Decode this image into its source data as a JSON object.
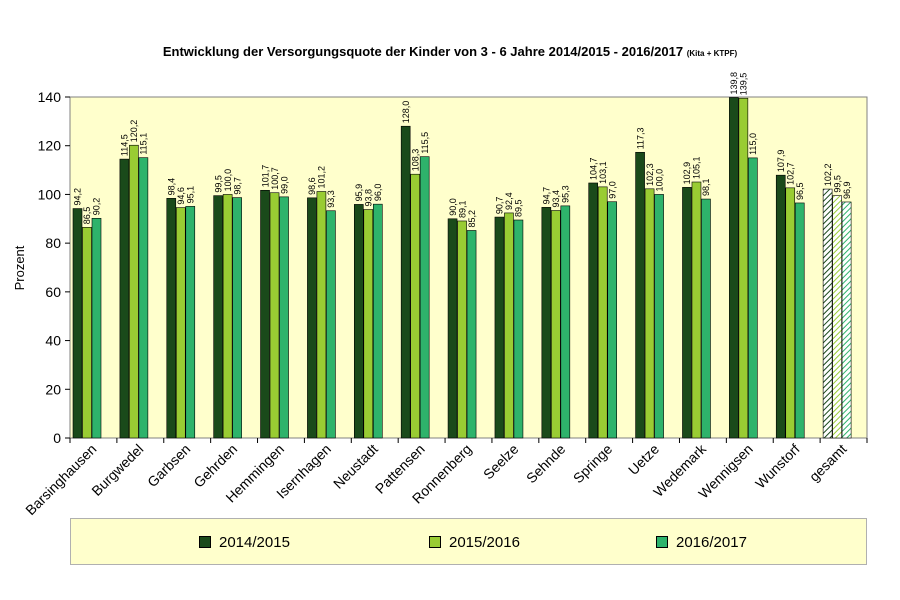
{
  "chart_data": {
    "type": "bar",
    "title": "Entwicklung der Versorgungsquote der Kinder von 3 - 6 Jahre 2014/2015 - 2016/2017",
    "subtitle": "(Kita + KTPF)",
    "ylabel": "Prozent",
    "xlabel": "",
    "ylim": [
      0,
      140
    ],
    "yticks": [
      0,
      20,
      40,
      60,
      80,
      100,
      120,
      140
    ],
    "grid": false,
    "legend_position": "bottom",
    "categories": [
      "Barsinghausen",
      "Burgwedel",
      "Garbsen",
      "Gehrden",
      "Hemmingen",
      "Isernhagen",
      "Neustadt",
      "Pattensen",
      "Ronnenberg",
      "Seelze",
      "Sehnde",
      "Springe",
      "Uetze",
      "Wedemark",
      "Wennigsen",
      "Wunstorf",
      "gesamt"
    ],
    "series": [
      {
        "name": "2014/2015",
        "color": "#1a4a1a",
        "values": [
          94.2,
          114.5,
          98.4,
          99.5,
          101.7,
          98.6,
          95.9,
          128.0,
          90.0,
          90.7,
          94.7,
          104.7,
          117.3,
          102.9,
          139.8,
          107.9,
          102.2
        ],
        "labels": [
          "94,2",
          "114,5",
          "98,4",
          "99,5",
          "101,7",
          "98,6",
          "95,9",
          "128,0",
          "90,0",
          "90,7",
          "94,7",
          "104,7",
          "117,3",
          "102,9",
          "139,8",
          "107,9",
          "102,2"
        ]
      },
      {
        "name": "2015/2016",
        "color": "#99cc33",
        "values": [
          86.5,
          120.2,
          94.6,
          100.0,
          100.7,
          101.2,
          93.8,
          108.3,
          89.1,
          92.4,
          93.4,
          103.1,
          102.3,
          105.1,
          139.5,
          102.7,
          99.5
        ],
        "labels": [
          "86,5",
          "120,2",
          "94,6",
          "100,0",
          "100,7",
          "101,2",
          "93,8",
          "108,3",
          "89,1",
          "92,4",
          "93,4",
          "103,1",
          "102,3",
          "105,1",
          "139,5",
          "102,7",
          "99,5"
        ]
      },
      {
        "name": "2016/2017",
        "color": "#2eb36b",
        "values": [
          90.2,
          115.1,
          95.1,
          98.7,
          99.0,
          93.3,
          96.0,
          115.5,
          85.2,
          89.5,
          95.3,
          97.0,
          100.0,
          98.1,
          115.0,
          96.5,
          96.9
        ],
        "labels": [
          "90,2",
          "115,1",
          "95,1",
          "98,7",
          "99,0",
          "93,3",
          "96,0",
          "115,5",
          "85,2",
          "89,5",
          "95,3",
          "97,0",
          "100,0",
          "98,1",
          "115,0",
          "96,5",
          "96,9"
        ]
      }
    ]
  }
}
